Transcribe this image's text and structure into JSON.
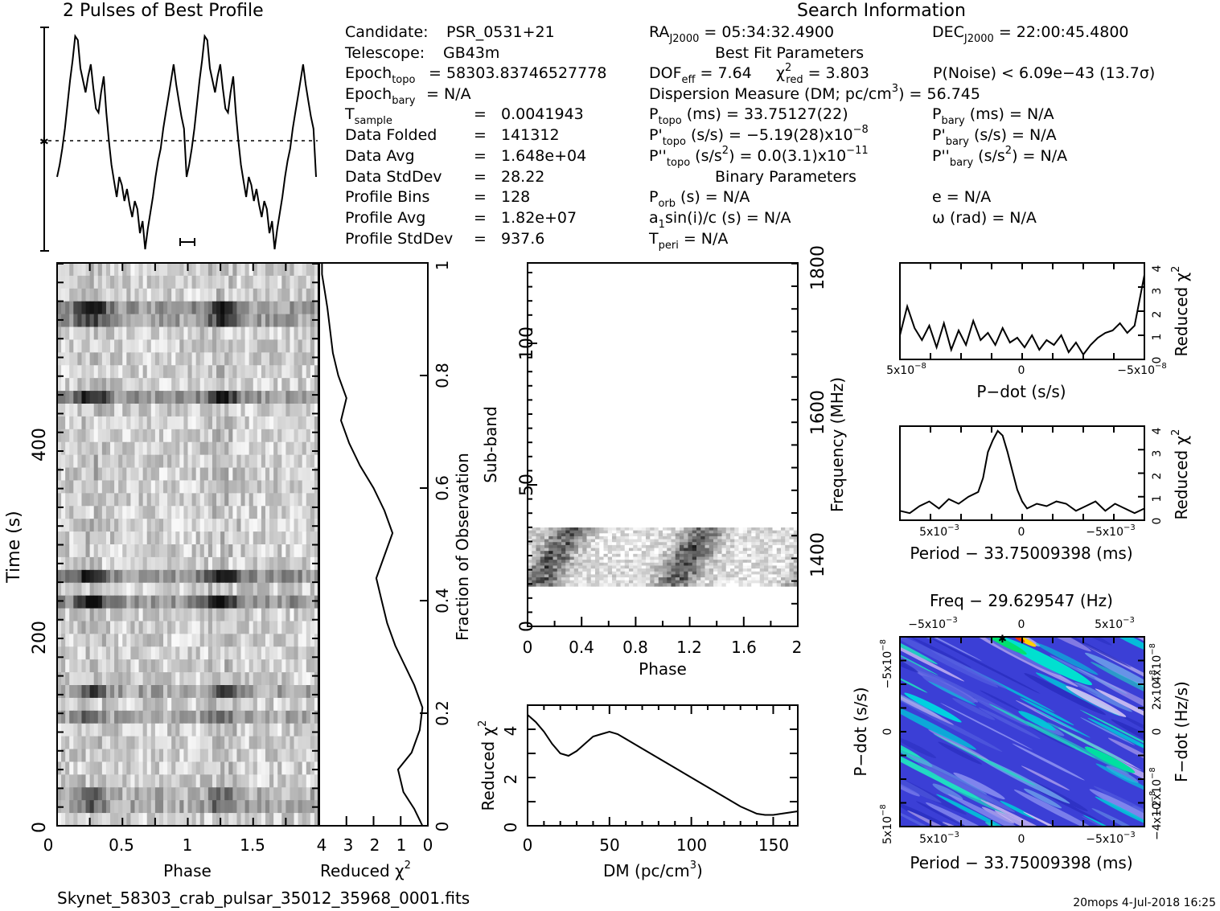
{
  "footer": {
    "filename": "Skynet_58303_crab_pulsar_35012_35968_0001.fits",
    "user_date": "20mops   4-Jul-2018 16:25"
  },
  "header": {
    "profile_title": "2 Pulses of Best Profile",
    "search_title": "Search Information",
    "best_fit_title": "Best Fit Parameters",
    "binary_title": "Binary Parameters"
  },
  "left_info": [
    {
      "label": "Candidate:",
      "value": "PSR_0531+21"
    },
    {
      "label": "Telescope:",
      "value": "GB43m"
    },
    {
      "label": "Epoch",
      "sub": "topo",
      "value": "= 58303.83746527778"
    },
    {
      "label": "Epoch",
      "sub": "bary",
      "value": "= N/A"
    },
    {
      "label": "T",
      "sub": "sample",
      "value": "0.0041943"
    },
    {
      "label": "Data Folded",
      "value": "141312"
    },
    {
      "label": "Data Avg",
      "value": "1.648e+04"
    },
    {
      "label": "Data StdDev",
      "value": "28.22"
    },
    {
      "label": "Profile Bins",
      "value": "128"
    },
    {
      "label": "Profile Avg",
      "value": "1.82e+07"
    },
    {
      "label": "Profile StdDev",
      "value": "937.6"
    }
  ],
  "search_info": {
    "ra": "= 05:34:32.4900",
    "dec": "= 22:00:45.4800",
    "dof": "= 7.64",
    "chi2": "= 3.803",
    "pnoise": "P(Noise) < 6.09e−43   (13.7σ)",
    "dm": "Dispersion Measure (DM; pc/cm",
    "dm_value": ") = 56.745",
    "ptopo": "(ms) =  33.75127(22)",
    "pbary": "(ms) = N/A",
    "pdtopo": "(s/s) = −5.19(28)x10",
    "pdtopo_exp": "−8",
    "pdbary": "(s/s) = N/A",
    "pddtopo": "(s/s",
    "pddtopo_val": ") = 0.0(3.1)x10",
    "pddtopo_exp": "−11",
    "pddbary": "(s/s",
    "pddbary_val": ") = N/A",
    "porb": "(s) = N/A",
    "asini": "sin(i)/c (s) = N/A",
    "tperi": "= N/A",
    "e": "e = N/A",
    "omega": "ω (rad) = N/A"
  },
  "chart_data": [
    {
      "type": "line",
      "title": "2 Pulses of Best Profile",
      "x": [
        0,
        0.02,
        0.04,
        0.06,
        0.08,
        0.1,
        0.12,
        0.14,
        0.16,
        0.18,
        0.2,
        0.22,
        0.24,
        0.26,
        0.28,
        0.3,
        0.32,
        0.34,
        0.36,
        0.38,
        0.4,
        0.42,
        0.44,
        0.46,
        0.48,
        0.5,
        0.52,
        0.54,
        0.56,
        0.58,
        0.6,
        0.62,
        0.64,
        0.66,
        0.68,
        0.7,
        0.72,
        0.74,
        0.76,
        0.78,
        0.8,
        0.82,
        0.84,
        0.86,
        0.88,
        0.9,
        0.92,
        0.94,
        0.96,
        0.98,
        1.0
      ],
      "y": [
        -0.9,
        -0.6,
        -0.2,
        0.3,
        0.9,
        1.5,
        2.0,
        2.6,
        2.5,
        1.8,
        1.5,
        1.2,
        1.6,
        1.9,
        1.3,
        0.8,
        0.7,
        1.2,
        1.6,
        0.7,
        0.0,
        -0.6,
        -1.0,
        -1.4,
        -0.9,
        -1.1,
        -1.5,
        -1.2,
        -1.6,
        -1.9,
        -1.5,
        -1.7,
        -2.3,
        -2.0,
        -2.7,
        -2.2,
        -1.8,
        -1.4,
        -0.9,
        -0.5,
        -0.2,
        0.3,
        0.7,
        1.1,
        1.5,
        1.9,
        1.4,
        1.0,
        0.6,
        0.3,
        -0.9
      ]
    },
    {
      "type": "line",
      "title": "",
      "xlabel": "Reduced χ2",
      "ylabel": "Fraction of Observation",
      "xlim": [
        4,
        0
      ],
      "ylim": [
        0,
        1
      ],
      "x": [
        0.2,
        0.5,
        0.9,
        1.1,
        0.6,
        0.3,
        0.2,
        0.5,
        0.9,
        1.2,
        1.5,
        1.7,
        1.9,
        1.6,
        1.3,
        1.6,
        2.0,
        2.5,
        2.9,
        3.2,
        3.0,
        3.3,
        3.5,
        3.6,
        3.7,
        3.8,
        3.9,
        3.9
      ],
      "y": [
        0.0,
        0.03,
        0.06,
        0.1,
        0.13,
        0.17,
        0.21,
        0.25,
        0.29,
        0.32,
        0.36,
        0.4,
        0.44,
        0.48,
        0.52,
        0.56,
        0.6,
        0.64,
        0.68,
        0.72,
        0.76,
        0.8,
        0.84,
        0.88,
        0.92,
        0.95,
        0.98,
        1.0
      ]
    },
    {
      "type": "heatmap",
      "title": "",
      "xlabel": "Phase",
      "ylabel": "Time (s)",
      "xlim": [
        0,
        2
      ],
      "ylim": [
        0,
        550
      ],
      "x_ticks": [
        "0",
        "0.5",
        "1",
        "1.5"
      ],
      "y_ticks": [
        "0",
        "200",
        "400"
      ]
    },
    {
      "type": "heatmap",
      "title": "",
      "xlabel": "Phase",
      "ylabel": "Sub-band",
      "ylabel_right": "Frequency (MHz)",
      "xlim": [
        0,
        2
      ],
      "ylim": [
        0,
        128
      ],
      "x_ticks": [
        "0",
        "0.4",
        "0.8",
        "1.2",
        "1.6",
        "2"
      ],
      "y_ticks": [
        "0",
        "50",
        "100"
      ],
      "y_ticks_right": [
        "1400",
        "1600",
        "1800"
      ]
    },
    {
      "type": "line",
      "title": "",
      "xlabel": "DM (pc/cm3)",
      "ylabel": "Reduced χ2",
      "xlim": [
        0,
        165
      ],
      "ylim": [
        0,
        5
      ],
      "x": [
        0,
        5,
        10,
        15,
        20,
        25,
        30,
        35,
        40,
        45,
        50,
        55,
        60,
        70,
        80,
        90,
        100,
        110,
        120,
        130,
        140,
        145,
        150,
        155,
        160,
        165
      ],
      "y": [
        4.6,
        4.3,
        3.9,
        3.4,
        3.0,
        2.9,
        3.1,
        3.4,
        3.7,
        3.8,
        3.9,
        3.8,
        3.6,
        3.2,
        2.8,
        2.4,
        2.0,
        1.6,
        1.2,
        0.8,
        0.5,
        0.45,
        0.45,
        0.5,
        0.55,
        0.6
      ]
    },
    {
      "type": "line",
      "title": "",
      "xlabel": "P−dot (s/s)",
      "ylabel": "Reduced χ2",
      "x_ticks": [
        "5x10−8",
        "0",
        "−5x10−8"
      ],
      "ylim": [
        0,
        4
      ],
      "x": [
        0,
        0.03,
        0.06,
        0.09,
        0.12,
        0.15,
        0.18,
        0.21,
        0.24,
        0.27,
        0.3,
        0.33,
        0.36,
        0.39,
        0.42,
        0.45,
        0.48,
        0.51,
        0.54,
        0.57,
        0.6,
        0.63,
        0.66,
        0.69,
        0.72,
        0.75,
        0.78,
        0.81,
        0.84,
        0.87,
        0.9,
        0.93,
        0.96,
        1.0
      ],
      "y": [
        1.0,
        2.2,
        1.3,
        0.8,
        1.4,
        0.5,
        1.5,
        0.4,
        1.2,
        0.6,
        1.6,
        0.8,
        1.1,
        0.6,
        1.3,
        0.7,
        0.9,
        0.5,
        1.0,
        0.4,
        0.8,
        0.6,
        1.0,
        0.3,
        0.7,
        0.2,
        0.6,
        0.9,
        1.1,
        1.2,
        1.5,
        1.1,
        1.4,
        3.5
      ]
    },
    {
      "type": "line",
      "title": "",
      "xlabel": "Period − 33.75009398 (ms)",
      "ylabel": "Reduced χ2",
      "x_ticks": [
        "5x10−3",
        "0",
        "−5x10−3"
      ],
      "ylim": [
        0,
        4
      ],
      "x": [
        0,
        0.04,
        0.08,
        0.12,
        0.16,
        0.2,
        0.24,
        0.28,
        0.32,
        0.34,
        0.36,
        0.38,
        0.4,
        0.42,
        0.44,
        0.46,
        0.48,
        0.5,
        0.52,
        0.56,
        0.6,
        0.64,
        0.68,
        0.72,
        0.76,
        0.8,
        0.84,
        0.88,
        0.92,
        0.96,
        1.0
      ],
      "y": [
        0.4,
        0.3,
        0.6,
        0.8,
        0.5,
        0.9,
        0.7,
        1.0,
        1.2,
        1.8,
        2.9,
        3.4,
        3.8,
        3.6,
        2.9,
        2.1,
        1.3,
        0.8,
        0.5,
        0.7,
        0.6,
        0.8,
        0.7,
        0.4,
        0.6,
        0.8,
        0.4,
        0.7,
        0.5,
        0.3,
        0.5
      ]
    },
    {
      "type": "heatmap",
      "title": "Freq − 29.629547 (Hz)",
      "xlabel": "Period − 33.75009398 (ms)",
      "ylabel": "P−dot (s/s)",
      "ylabel_right": "F−dot (Hz/s)",
      "x_ticks": [
        "5x10−3",
        "0",
        "−5x10−3"
      ],
      "x_ticks_top": [
        "−5x10−3",
        "0",
        "5x10−3"
      ],
      "y_ticks": [
        "5x10−8",
        "0",
        "−5x10−8"
      ],
      "y_ticks_right": [
        "−4x10−8",
        "−2x10−8",
        "0",
        "2x10−8",
        "4x10−8"
      ]
    }
  ]
}
